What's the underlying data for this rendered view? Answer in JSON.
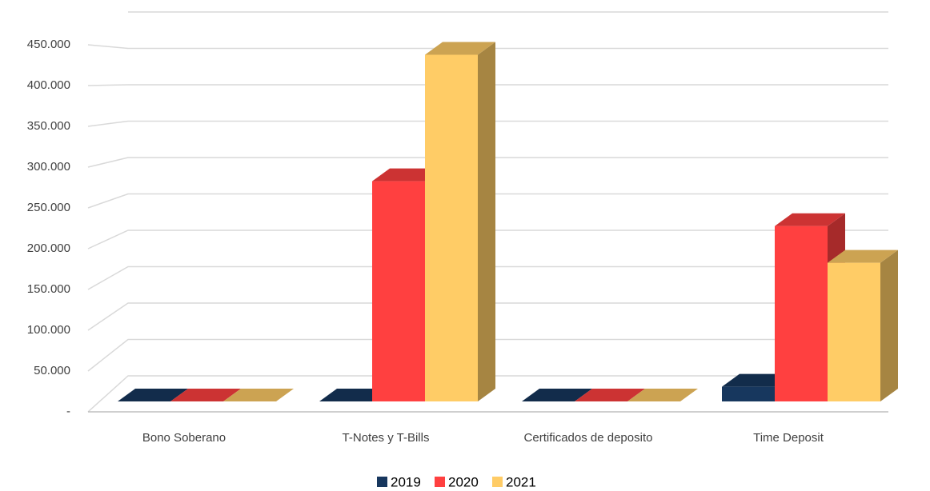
{
  "chart_data": {
    "type": "bar3d",
    "categories": [
      "Bono Soberano",
      "T-Notes y T-Bills",
      "Certificados de deposito",
      "Time Deposit"
    ],
    "series": [
      {
        "name": "2019",
        "color": "#17375e",
        "values": [
          0,
          0,
          0,
          18
        ]
      },
      {
        "name": "2020",
        "color": "#ff4040",
        "values": [
          0,
          270,
          0,
          215
        ]
      },
      {
        "name": "2021",
        "color": "#ffcc66",
        "values": [
          0,
          425,
          0,
          170
        ]
      }
    ],
    "ylim": [
      0,
      500
    ],
    "yticks": [
      {
        "value": 0,
        "label": "-"
      },
      {
        "value": 50,
        "label": "50.000"
      },
      {
        "value": 100,
        "label": "100.000"
      },
      {
        "value": 150,
        "label": "150.000"
      },
      {
        "value": 200,
        "label": "200.000"
      },
      {
        "value": 250,
        "label": "250.000"
      },
      {
        "value": 300,
        "label": "300.000"
      },
      {
        "value": 350,
        "label": "350.000"
      },
      {
        "value": 400,
        "label": "400.000"
      },
      {
        "value": 450,
        "label": "450.000"
      }
    ],
    "grid": true,
    "legend": "bottom"
  }
}
